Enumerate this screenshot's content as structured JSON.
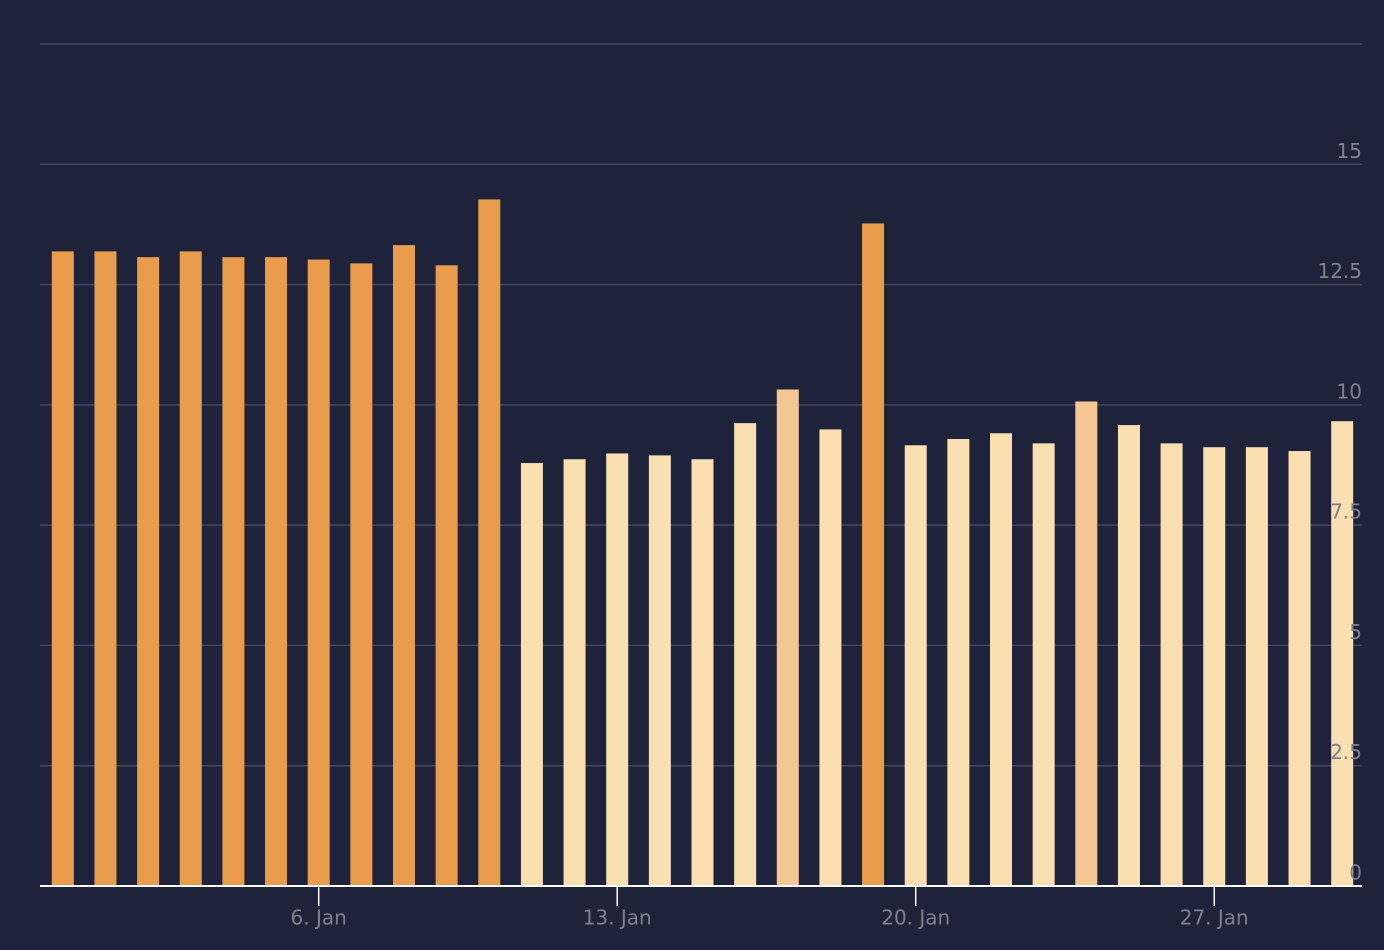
{
  "chart_data": {
    "type": "bar",
    "categories": [
      null,
      null,
      null,
      null,
      null,
      null,
      "6. Jan",
      null,
      null,
      null,
      null,
      null,
      null,
      "13. Jan",
      null,
      null,
      null,
      null,
      null,
      null,
      "20. Jan",
      null,
      null,
      null,
      null,
      null,
      null,
      "27. Jan",
      null,
      null,
      null
    ],
    "values": [
      13.19,
      13.19,
      13.07,
      13.19,
      13.07,
      13.07,
      13.02,
      12.94,
      13.32,
      12.9,
      14.27,
      8.79,
      8.87,
      8.99,
      8.95,
      8.87,
      9.62,
      10.32,
      9.49,
      13.77,
      9.16,
      9.29,
      9.41,
      9.2,
      10.07,
      9.58,
      9.2,
      9.12,
      9.12,
      9.04,
      9.66
    ],
    "colors": [
      "#e99d4c",
      "#e99d4c",
      "#e99d4c",
      "#e99d4c",
      "#e99d4c",
      "#e99d4c",
      "#e99d4c",
      "#e99d4c",
      "#e99d4c",
      "#e99d4c",
      "#e99d4c",
      "#fadfb0",
      "#fadfb0",
      "#fadfb0",
      "#fadfb0",
      "#fadfb0",
      "#fadfb0",
      "#f2c794",
      "#fadfb0",
      "#e99d4c",
      "#fadfb0",
      "#fadfb0",
      "#fadfb0",
      "#fadfb0",
      "#f2c794",
      "#fadfb0",
      "#fadfb0",
      "#fadfb0",
      "#fadfb0",
      "#fadfb0",
      "#fadfb0"
    ],
    "ylim": [
      0,
      17.5
    ],
    "yticks": [
      0,
      2.5,
      5,
      7.5,
      10,
      12.5,
      15
    ],
    "grid": true
  }
}
